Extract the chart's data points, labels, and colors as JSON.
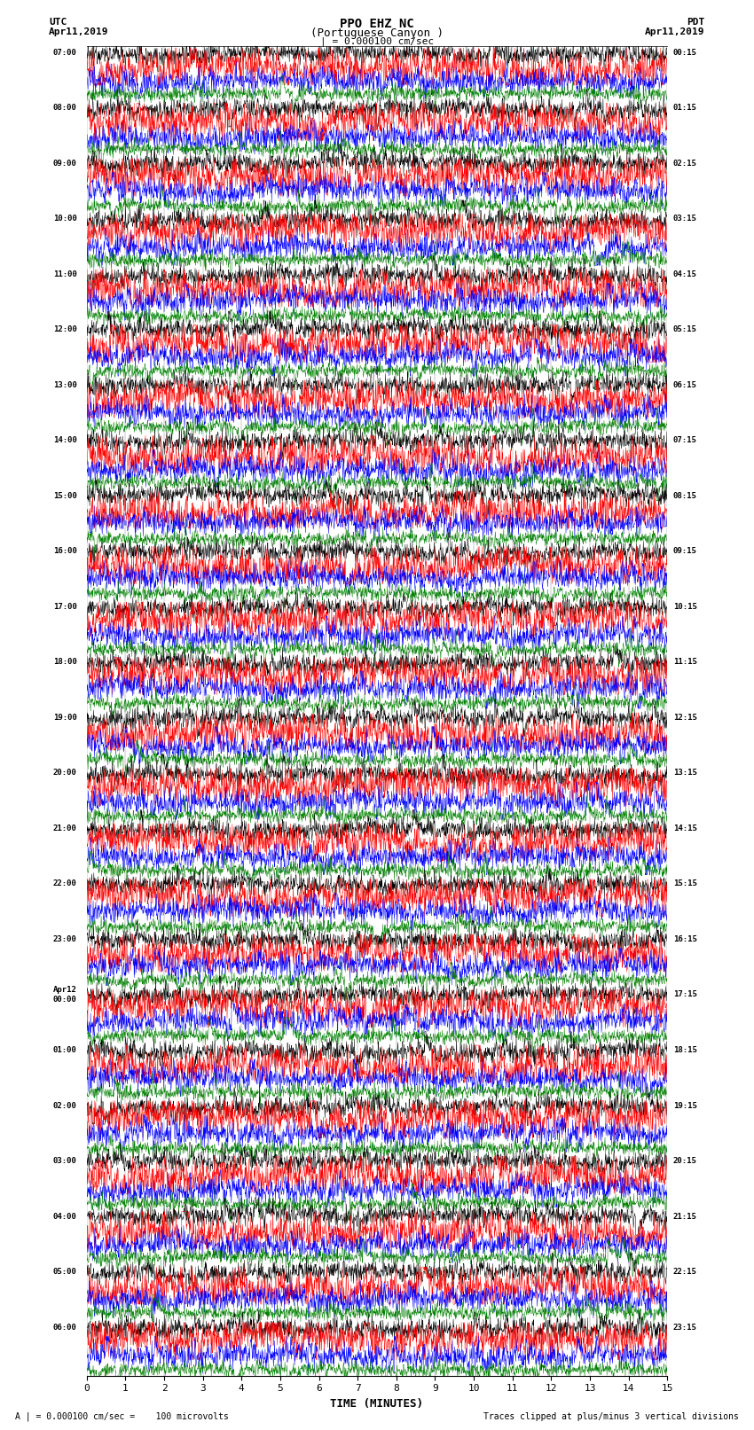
{
  "title_line1": "PPO EHZ NC",
  "title_line2": "(Portuguese Canyon )",
  "title_line3": "| = 0.000100 cm/sec",
  "label_utc": "UTC",
  "label_pdt": "PDT",
  "date_left": "Apr11,2019",
  "date_right": "Apr11,2019",
  "xlabel": "TIME (MINUTES)",
  "footnote_left": "A | = 0.000100 cm/sec =    100 microvolts",
  "footnote_right": "Traces clipped at plus/minus 3 vertical divisions",
  "trace_colors_cycle": [
    "black",
    "red",
    "blue",
    "green"
  ],
  "n_groups": 24,
  "traces_per_group": 4,
  "xlim": [
    0,
    15
  ],
  "xticks": [
    0,
    1,
    2,
    3,
    4,
    5,
    6,
    7,
    8,
    9,
    10,
    11,
    12,
    13,
    14,
    15
  ],
  "left_times": [
    "07:00",
    "08:00",
    "09:00",
    "10:00",
    "11:00",
    "12:00",
    "13:00",
    "14:00",
    "15:00",
    "16:00",
    "17:00",
    "18:00",
    "19:00",
    "20:00",
    "21:00",
    "22:00",
    "23:00",
    "Apr12\n00:00",
    "01:00",
    "02:00",
    "03:00",
    "04:00",
    "05:00",
    "06:00"
  ],
  "right_times": [
    "00:15",
    "01:15",
    "02:15",
    "03:15",
    "04:15",
    "05:15",
    "06:15",
    "07:15",
    "08:15",
    "09:15",
    "10:15",
    "11:15",
    "12:15",
    "13:15",
    "14:15",
    "15:15",
    "16:15",
    "17:15",
    "18:15",
    "19:15",
    "20:15",
    "21:15",
    "22:15",
    "23:15"
  ],
  "bg_color": "white"
}
